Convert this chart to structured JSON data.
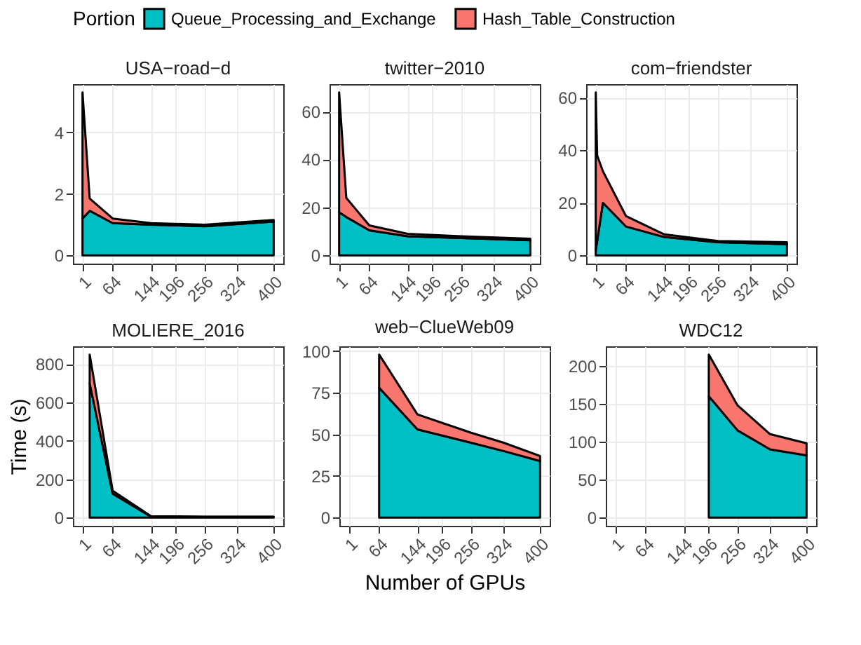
{
  "chart_data": [
    {
      "type": "area",
      "title": "USA−road−d",
      "legend_title": "Portion",
      "stacked": true,
      "grid": true,
      "legend": "top",
      "x": [
        1,
        16,
        64,
        144,
        256,
        400
      ],
      "xlim": [
        -19,
        420
      ],
      "xticks": [
        1,
        64,
        144,
        196,
        256,
        324,
        400
      ],
      "ylim": [
        -0.265,
        5.565
      ],
      "yticks": [
        0,
        2,
        4
      ],
      "series": [
        {
          "name": "Queue_Processing_and_Exchange",
          "color": "#00bfc4",
          "values": [
            1.2,
            1.45,
            1.05,
            1.0,
            0.95,
            1.1
          ]
        },
        {
          "name": "Hash_Table_Construction",
          "color": "#f8766d",
          "values": [
            4.1,
            0.4,
            0.15,
            0.05,
            0.05,
            0.05
          ]
        }
      ]
    },
    {
      "type": "area",
      "title": "twitter−2010",
      "stacked": true,
      "grid": true,
      "x": [
        1,
        16,
        64,
        144,
        256,
        400
      ],
      "xlim": [
        -19,
        420
      ],
      "xticks": [
        1,
        64,
        144,
        196,
        256,
        324,
        400
      ],
      "ylim": [
        -3.4,
        71.4
      ],
      "yticks": [
        0,
        20,
        40,
        60
      ],
      "series": [
        {
          "name": "Queue_Processing_and_Exchange",
          "color": "#00bfc4",
          "values": [
            18,
            16,
            10.5,
            8,
            7.3,
            6.3
          ]
        },
        {
          "name": "Hash_Table_Construction",
          "color": "#f8766d",
          "values": [
            50,
            8,
            2,
            1,
            0.7,
            0.7
          ]
        }
      ]
    },
    {
      "type": "area",
      "title": "com−friendster",
      "stacked": true,
      "grid": true,
      "x": [
        1,
        4,
        16,
        64,
        144,
        256,
        400
      ],
      "xlim": [
        -19,
        420
      ],
      "xticks": [
        1,
        64,
        144,
        196,
        256,
        324,
        400
      ],
      "ylim": [
        -3.1,
        65.1
      ],
      "yticks": [
        0,
        20,
        40,
        60
      ],
      "series": [
        {
          "name": "Queue_Processing_and_Exchange",
          "color": "#00bfc4",
          "values": [
            2,
            5.5,
            20,
            11,
            7,
            5,
            4.3
          ]
        },
        {
          "name": "Hash_Table_Construction",
          "color": "#f8766d",
          "values": [
            60,
            32.5,
            12,
            4,
            1,
            0.5,
            0.7
          ]
        }
      ]
    },
    {
      "type": "area",
      "title": "MOLIERE_2016",
      "ylabel": "Time (s)",
      "stacked": true,
      "grid": true,
      "x": [
        16,
        64,
        144,
        256,
        400
      ],
      "xlim": [
        -19,
        420
      ],
      "xticks": [
        1,
        64,
        144,
        196,
        256,
        324,
        400
      ],
      "ylim": [
        -42.5,
        892.5
      ],
      "yticks": [
        0,
        200,
        400,
        600,
        800
      ],
      "series": [
        {
          "name": "Queue_Processing_and_Exchange",
          "color": "#00bfc4",
          "values": [
            700,
            125,
            5,
            4,
            4
          ]
        },
        {
          "name": "Hash_Table_Construction",
          "color": "#f8766d",
          "values": [
            150,
            15,
            3,
            1,
            1
          ]
        }
      ]
    },
    {
      "type": "area",
      "title": "web−ClueWeb09",
      "xlabel": "Number of GPUs",
      "stacked": true,
      "grid": true,
      "x": [
        64,
        144,
        256,
        324,
        400
      ],
      "xlim": [
        -19,
        420
      ],
      "xticks": [
        1,
        64,
        144,
        196,
        256,
        324,
        400
      ],
      "ylim": [
        -4.9,
        102.9
      ],
      "yticks": [
        0,
        25,
        50,
        75,
        100
      ],
      "series": [
        {
          "name": "Queue_Processing_and_Exchange",
          "color": "#00bfc4",
          "values": [
            78,
            53,
            45,
            40,
            34
          ]
        },
        {
          "name": "Hash_Table_Construction",
          "color": "#f8766d",
          "values": [
            20,
            9,
            6,
            5,
            3
          ]
        }
      ]
    },
    {
      "type": "area",
      "title": "WDC12",
      "stacked": true,
      "grid": true,
      "x": [
        196,
        256,
        324,
        400
      ],
      "xlim": [
        -19,
        420
      ],
      "xticks": [
        1,
        64,
        144,
        196,
        256,
        324,
        400
      ],
      "ylim": [
        -10.75,
        225.75
      ],
      "yticks": [
        0,
        50,
        100,
        150,
        200
      ],
      "series": [
        {
          "name": "Queue_Processing_and_Exchange",
          "color": "#00bfc4",
          "values": [
            160,
            115,
            90,
            82
          ]
        },
        {
          "name": "Hash_Table_Construction",
          "color": "#f8766d",
          "values": [
            55,
            33,
            20,
            16
          ]
        }
      ]
    }
  ]
}
